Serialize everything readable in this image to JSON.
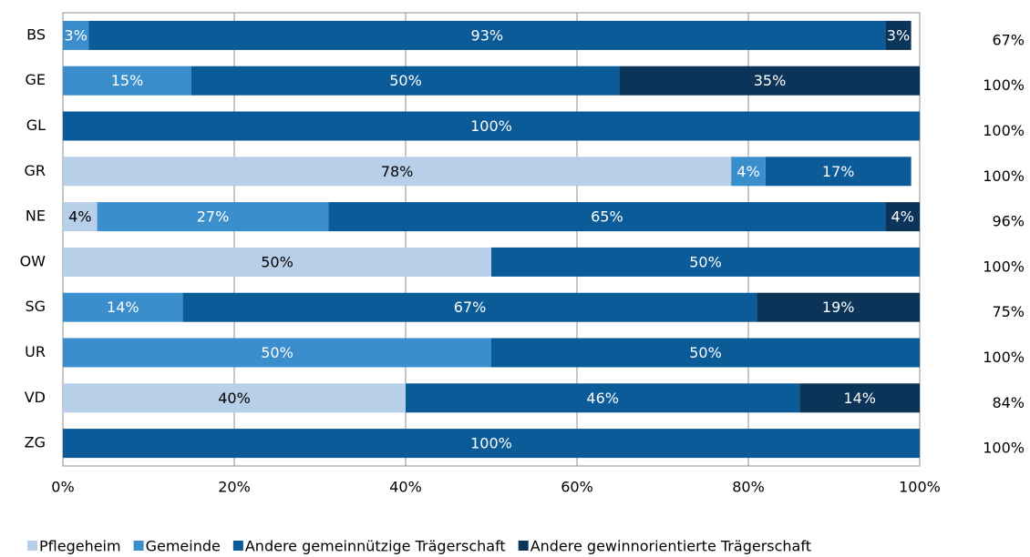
{
  "chart_data": {
    "type": "stacked-barh",
    "categories": [
      "BS",
      "GE",
      "GL",
      "GR",
      "NE",
      "OW",
      "SG",
      "UR",
      "VD",
      "ZG"
    ],
    "series": [
      {
        "name": "Pflegeheim",
        "color": "#b8cfea",
        "label_color": "#000000",
        "values": [
          null,
          null,
          null,
          78,
          4,
          50,
          null,
          null,
          40,
          null
        ],
        "value_labels": [
          null,
          null,
          null,
          "78%",
          "4%",
          "50%",
          null,
          null,
          "40%",
          null
        ]
      },
      {
        "name": "Gemeinde",
        "color": "#3a8ecb",
        "label_color": "#ffffff",
        "values": [
          3,
          15,
          null,
          4,
          27,
          null,
          14,
          50,
          null,
          null
        ],
        "value_labels": [
          "3%",
          "15%",
          null,
          "4%",
          "27%",
          null,
          "14%",
          "50%",
          null,
          null
        ]
      },
      {
        "name": "Andere gemeinnützige Trägerschaft",
        "color": "#0b5b98",
        "label_color": "#ffffff",
        "values": [
          93,
          50,
          100,
          17,
          65,
          50,
          67,
          50,
          46,
          100
        ],
        "value_labels": [
          "93%",
          "50%",
          "100%",
          "17%",
          "65%",
          "50%",
          "67%",
          "50%",
          "46%",
          "100%"
        ]
      },
      {
        "name": "Andere gewinnorientierte Trägerschaft",
        "color": "#0c3358",
        "label_color": "#ffffff",
        "values": [
          3,
          35,
          null,
          null,
          4,
          null,
          19,
          null,
          14,
          null
        ],
        "value_labels": [
          "3%",
          "35%",
          null,
          null,
          "4%",
          null,
          "19%",
          null,
          "14%",
          null
        ]
      }
    ],
    "side_values": {
      "values": [
        67,
        100,
        100,
        100,
        96,
        100,
        75,
        100,
        84,
        100
      ],
      "value_labels": [
        "67%",
        "100%",
        "100%",
        "100%",
        "96%",
        "100%",
        "75%",
        "100%",
        "84%",
        "100%"
      ]
    },
    "xlim": [
      0,
      100
    ],
    "xticks": [
      {
        "value": 0,
        "label": "0%"
      },
      {
        "value": 20,
        "label": "20%"
      },
      {
        "value": 40,
        "label": "40%"
      },
      {
        "value": 60,
        "label": "60%"
      },
      {
        "value": 80,
        "label": "80%"
      },
      {
        "value": 100,
        "label": "100%"
      }
    ],
    "grid": true,
    "legend": "bottom"
  }
}
